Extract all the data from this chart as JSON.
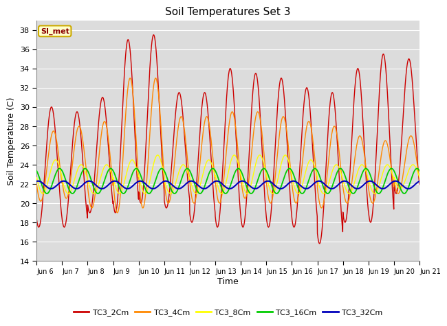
{
  "title": "Soil Temperatures Set 3",
  "xlabel": "Time",
  "ylabel": "Soil Temperature (C)",
  "ylim": [
    14,
    39
  ],
  "yticks": [
    14,
    16,
    18,
    20,
    22,
    24,
    26,
    28,
    30,
    32,
    34,
    36,
    38
  ],
  "xtick_labels": [
    "Jun 6",
    "Jun 7",
    "Jun 8",
    "Jun 9",
    "Jun 10",
    "Jun 11",
    "Jun 12",
    "Jun 13",
    "Jun 14",
    "Jun 15",
    "Jun 16",
    "Jun 17",
    "Jun 18",
    "Jun 19",
    "Jun 20",
    "Jun 21"
  ],
  "annotation_text": "SI_met",
  "annotation_color": "#8B0000",
  "annotation_bg": "#FFFFCC",
  "annotation_border": "#CCAA00",
  "series_colors": [
    "#CC0000",
    "#FF8800",
    "#FFFF00",
    "#00CC00",
    "#0000BB"
  ],
  "series_names": [
    "TC3_2Cm",
    "TC3_4Cm",
    "TC3_8Cm",
    "TC3_16Cm",
    "TC3_32Cm"
  ],
  "fig_bg": "#FFFFFF",
  "plot_bg": "#DCDCDC",
  "grid_color": "#FFFFFF",
  "day_data": {
    "0": [
      30.0,
      17.5,
      27.5,
      20.2,
      24.5,
      21.0
    ],
    "1": [
      29.5,
      17.5,
      28.0,
      20.5,
      24.0,
      21.0
    ],
    "2": [
      31.0,
      19.0,
      28.5,
      19.5,
      24.0,
      21.0
    ],
    "3": [
      37.0,
      19.0,
      33.0,
      19.0,
      24.5,
      21.0
    ],
    "4": [
      37.5,
      20.0,
      33.0,
      19.5,
      25.0,
      21.0
    ],
    "5": [
      31.5,
      19.5,
      29.0,
      20.0,
      24.0,
      21.0
    ],
    "6": [
      31.5,
      18.0,
      29.0,
      20.0,
      24.5,
      21.0
    ],
    "7": [
      34.0,
      17.5,
      29.5,
      20.0,
      25.0,
      21.0
    ],
    "8": [
      33.5,
      17.5,
      29.5,
      20.5,
      25.0,
      21.0
    ],
    "9": [
      33.0,
      17.5,
      29.0,
      20.0,
      25.0,
      21.0
    ],
    "10": [
      32.0,
      17.5,
      28.5,
      20.0,
      24.5,
      21.0
    ],
    "11": [
      31.5,
      15.8,
      28.0,
      19.5,
      24.0,
      21.0
    ],
    "12": [
      34.0,
      18.0,
      27.0,
      20.0,
      24.0,
      21.0
    ],
    "13": [
      35.5,
      18.0,
      26.5,
      20.0,
      24.0,
      21.0
    ],
    "14": [
      35.0,
      21.0,
      27.0,
      21.0,
      24.0,
      21.5
    ]
  }
}
